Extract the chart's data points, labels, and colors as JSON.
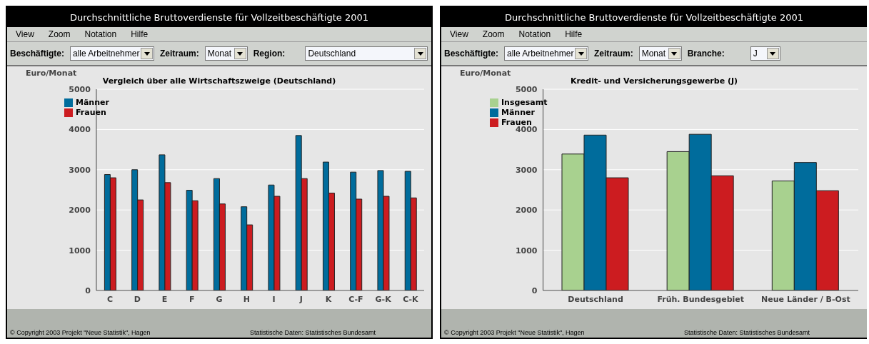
{
  "chart_data": [
    {
      "type": "bar",
      "title": "Vergleich über alle Wirtschaftszweige (Deutschland)",
      "ylabel": "Euro/Monat",
      "categories": [
        "C",
        "D",
        "E",
        "F",
        "G",
        "H",
        "I",
        "J",
        "K",
        "C-F",
        "G-K",
        "C-K"
      ],
      "series": [
        {
          "name": "Männer",
          "color": "#006c9c",
          "values": [
            2880,
            3000,
            3370,
            2490,
            2780,
            2080,
            2620,
            3850,
            3190,
            2940,
            2980,
            2960
          ]
        },
        {
          "name": "Frauen",
          "color": "#cc1c20",
          "values": [
            2800,
            2250,
            2680,
            2230,
            2150,
            1630,
            2340,
            2780,
            2420,
            2270,
            2340,
            2300
          ]
        }
      ],
      "ylim": [
        0,
        5000
      ],
      "yticks": [
        0,
        1000,
        2000,
        3000,
        4000,
        5000
      ],
      "grid": "y",
      "legend": "top left",
      "annotations": [
        "Durchschnittliche Bruttoverdienste für Vollzeitbeschäftigte 2001",
        "View",
        "Zoom",
        "Notation",
        "Hilfe",
        "Beschäftigte:",
        "alle Arbeitnehmer",
        "Zeitraum:",
        "Monat",
        "Region:",
        "Deutschland",
        "© Copyright 2003 Projekt \"Neue Statistik\", Hagen",
        "Statistische Daten: Statistisches Bundesamt"
      ]
    },
    {
      "type": "bar",
      "title": "Kredit- und Versicherungsgewerbe (J)",
      "ylabel": "Euro/Monat",
      "categories": [
        "Deutschland",
        "Früh. Bundesgebiet",
        "Neue Länder / B-Ost"
      ],
      "series": [
        {
          "name": "Insgesamt",
          "color": "#a8d18f",
          "values": [
            3390,
            3450,
            2720
          ]
        },
        {
          "name": "Männer",
          "color": "#006c9c",
          "values": [
            3860,
            3880,
            3180
          ]
        },
        {
          "name": "Frauen",
          "color": "#cc1c20",
          "values": [
            2800,
            2850,
            2480
          ]
        }
      ],
      "ylim": [
        0,
        5000
      ],
      "yticks": [
        0,
        1000,
        2000,
        3000,
        4000,
        5000
      ],
      "grid": "y",
      "legend": "top left",
      "annotations": [
        "Durchschnittliche Bruttoverdienste für Vollzeitbeschäftigte 2001",
        "View",
        "Zoom",
        "Notation",
        "Hilfe",
        "Beschäftigte:",
        "alle Arbeitnehmer",
        "Zeitraum:",
        "Monat",
        "Branche:",
        "J",
        "© Copyright 2003 Projekt \"Neue Statistik\", Hagen",
        "Statistische Daten: Statistisches Bundesamt"
      ]
    }
  ]
}
